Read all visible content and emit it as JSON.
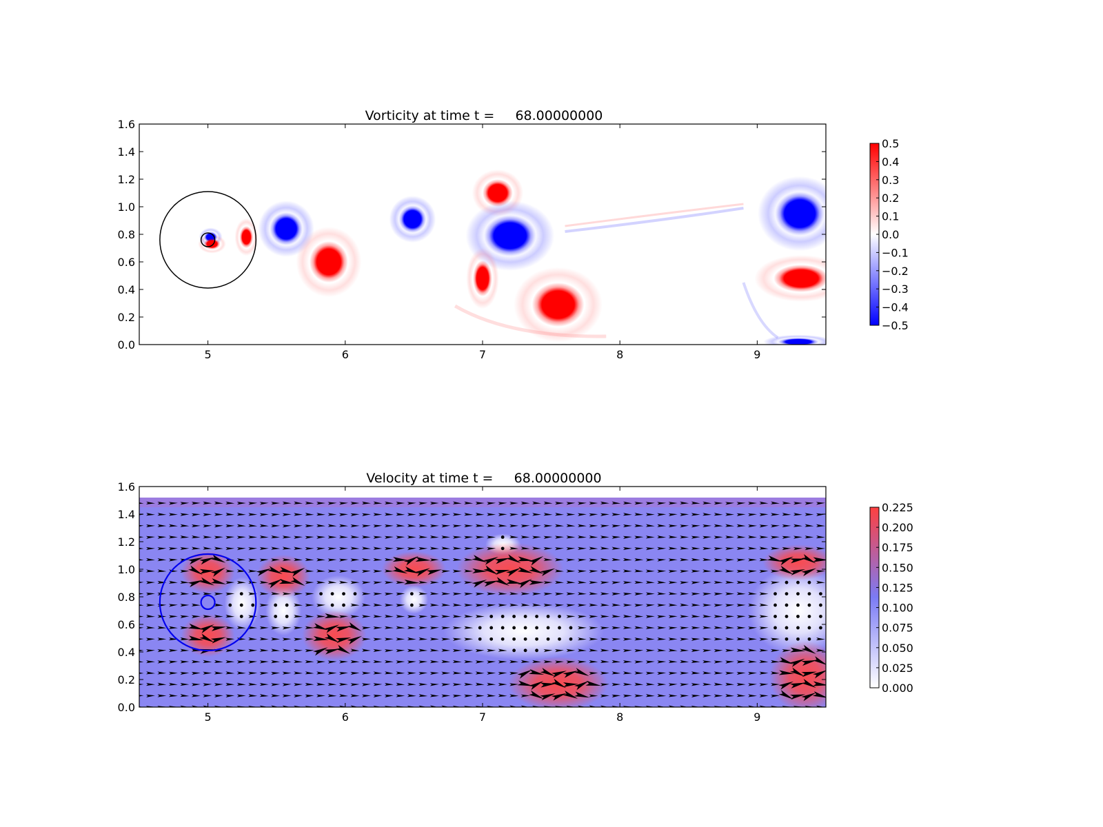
{
  "chart_data": [
    {
      "type": "heatmap",
      "title": "Vorticity at time t =     68.00000000",
      "xlim": [
        4.5,
        9.5
      ],
      "ylim": [
        0.0,
        1.6
      ],
      "xticks": [
        "5",
        "6",
        "7",
        "8",
        "9"
      ],
      "yticks": [
        "0.0",
        "0.2",
        "0.4",
        "0.6",
        "0.8",
        "1.0",
        "1.2",
        "1.4",
        "1.6"
      ],
      "colorbar": {
        "range": [
          -0.5,
          0.5
        ],
        "ticks": [
          "0.5",
          "0.4",
          "0.3",
          "0.2",
          "0.1",
          "0.0",
          "−0.1",
          "−0.2",
          "−0.3",
          "−0.4",
          "−0.5"
        ],
        "colors": [
          "#0000ff",
          "#ffffff",
          "#ff0000"
        ]
      },
      "vortices": [
        {
          "x": 5.02,
          "y": 0.78,
          "rx": 0.05,
          "ry": 0.04,
          "sign": -1
        },
        {
          "x": 5.03,
          "y": 0.73,
          "rx": 0.06,
          "ry": 0.04,
          "sign": 1
        },
        {
          "x": 5.28,
          "y": 0.78,
          "rx": 0.05,
          "ry": 0.08,
          "sign": 1
        },
        {
          "x": 5.57,
          "y": 0.84,
          "rx": 0.12,
          "ry": 0.12,
          "sign": -1
        },
        {
          "x": 5.88,
          "y": 0.6,
          "rx": 0.14,
          "ry": 0.15,
          "sign": 1
        },
        {
          "x": 6.49,
          "y": 0.91,
          "rx": 0.1,
          "ry": 0.1,
          "sign": -1
        },
        {
          "x": 7.11,
          "y": 1.1,
          "rx": 0.11,
          "ry": 0.1,
          "sign": 1
        },
        {
          "x": 7.2,
          "y": 0.79,
          "rx": 0.19,
          "ry": 0.15,
          "sign": -1
        },
        {
          "x": 7.0,
          "y": 0.48,
          "rx": 0.07,
          "ry": 0.13,
          "sign": 1
        },
        {
          "x": 7.55,
          "y": 0.29,
          "rx": 0.19,
          "ry": 0.16,
          "sign": 1
        },
        {
          "x": 9.31,
          "y": 0.95,
          "rx": 0.18,
          "ry": 0.16,
          "sign": -1
        },
        {
          "x": 9.32,
          "y": 0.48,
          "rx": 0.2,
          "ry": 0.1,
          "sign": 1
        },
        {
          "x": 9.3,
          "y": 0.02,
          "rx": 0.15,
          "ry": 0.03,
          "sign": -1
        }
      ],
      "obstacle": {
        "x": 5.0,
        "y": 0.76,
        "r": 0.05
      },
      "boundary_circle": {
        "x": 5.0,
        "y": 0.76,
        "r": 0.35
      }
    },
    {
      "type": "heatmap",
      "title": "Velocity at time t =     68.00000000",
      "xlim": [
        4.5,
        9.5
      ],
      "ylim": [
        0.0,
        1.6
      ],
      "xticks": [
        "5",
        "6",
        "7",
        "8",
        "9"
      ],
      "yticks": [
        "0.0",
        "0.2",
        "0.4",
        "0.6",
        "0.8",
        "1.0",
        "1.2",
        "1.4",
        "1.6"
      ],
      "colorbar": {
        "range": [
          0.0,
          0.225
        ],
        "ticks": [
          "0.225",
          "0.200",
          "0.175",
          "0.150",
          "0.125",
          "0.100",
          "0.075",
          "0.050",
          "0.025",
          "0.000"
        ],
        "colors": [
          "#ffffff",
          "#7b7bf5",
          "#ff4040"
        ]
      },
      "fast_regions": [
        {
          "x": 5.0,
          "y": 0.98,
          "rx": 0.15,
          "ry": 0.12
        },
        {
          "x": 5.0,
          "y": 0.52,
          "rx": 0.15,
          "ry": 0.12
        },
        {
          "x": 5.55,
          "y": 0.95,
          "rx": 0.15,
          "ry": 0.12
        },
        {
          "x": 5.92,
          "y": 0.52,
          "rx": 0.18,
          "ry": 0.14
        },
        {
          "x": 6.5,
          "y": 1.0,
          "rx": 0.18,
          "ry": 0.1
        },
        {
          "x": 7.2,
          "y": 1.0,
          "rx": 0.3,
          "ry": 0.15
        },
        {
          "x": 7.55,
          "y": 0.17,
          "rx": 0.28,
          "ry": 0.15
        },
        {
          "x": 9.3,
          "y": 1.05,
          "rx": 0.2,
          "ry": 0.1
        },
        {
          "x": 9.35,
          "y": 0.22,
          "rx": 0.2,
          "ry": 0.2
        }
      ],
      "slow_regions": [
        {
          "x": 5.25,
          "y": 0.75,
          "rx": 0.1,
          "ry": 0.15
        },
        {
          "x": 5.55,
          "y": 0.7,
          "rx": 0.1,
          "ry": 0.14
        },
        {
          "x": 5.95,
          "y": 0.8,
          "rx": 0.15,
          "ry": 0.12
        },
        {
          "x": 6.5,
          "y": 0.78,
          "rx": 0.08,
          "ry": 0.08
        },
        {
          "x": 7.3,
          "y": 0.55,
          "rx": 0.45,
          "ry": 0.16
        },
        {
          "x": 7.15,
          "y": 1.18,
          "rx": 0.1,
          "ry": 0.06
        },
        {
          "x": 9.3,
          "y": 0.7,
          "rx": 0.28,
          "ry": 0.25
        }
      ],
      "obstacle": {
        "x": 5.0,
        "y": 0.76,
        "r": 0.05
      },
      "boundary_circle": {
        "x": 5.0,
        "y": 0.76,
        "r": 0.35
      }
    }
  ]
}
